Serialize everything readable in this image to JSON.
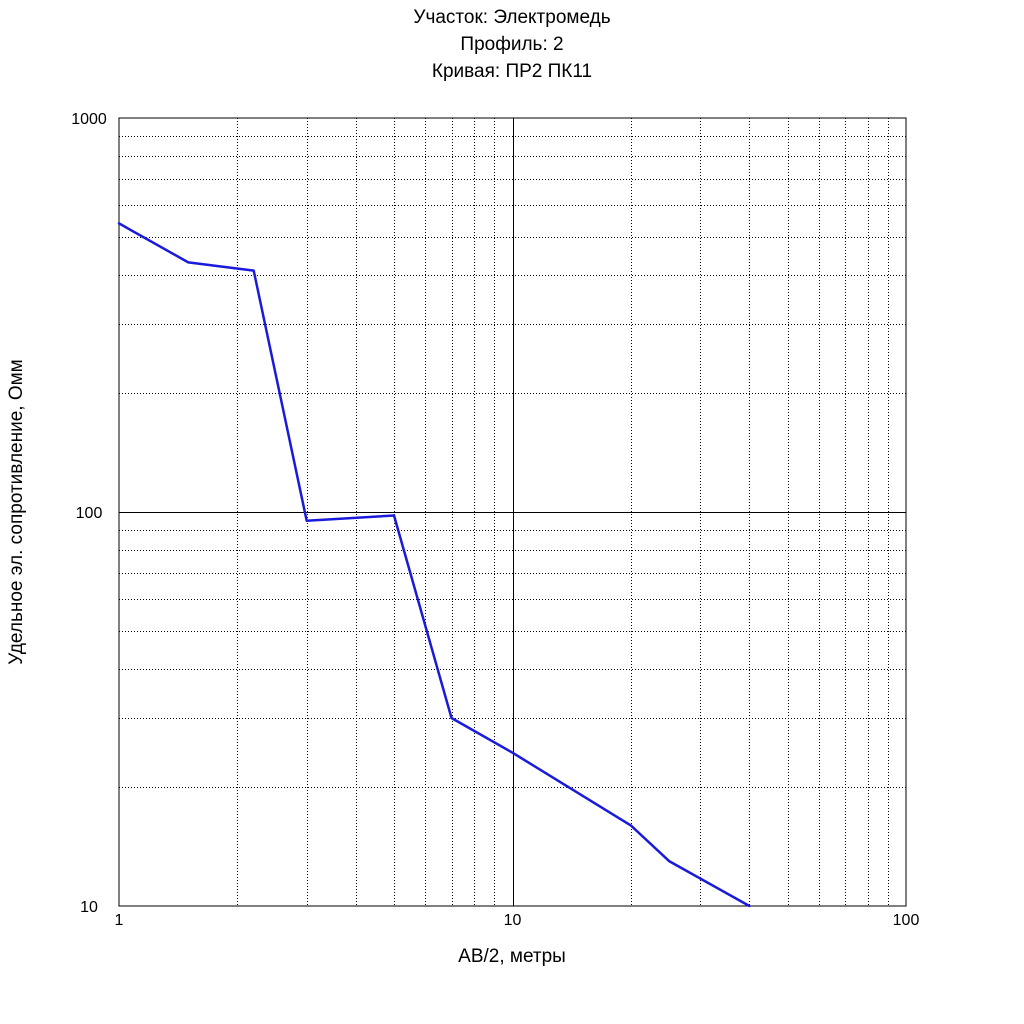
{
  "chart_data": {
    "type": "line",
    "title_lines": [
      "Участок: Электромедь",
      "Профиль: 2",
      "Кривая: ПР2 ПК11"
    ],
    "xlabel": "AB/2, метры",
    "ylabel": "Удельное эл. сопротивление, Омм",
    "x_scale": "log",
    "y_scale": "log",
    "xlim": [
      1,
      100
    ],
    "ylim": [
      10,
      1000
    ],
    "x_ticks": [
      {
        "value": 1,
        "label": "1"
      },
      {
        "value": 10,
        "label": "10"
      },
      {
        "value": 100,
        "label": "100"
      }
    ],
    "y_ticks": [
      {
        "value": 1000,
        "label": "1000"
      },
      {
        "value": 100,
        "label": "100"
      },
      {
        "value": 10,
        "label": "10"
      }
    ],
    "grid": true,
    "series": [
      {
        "color": "#1a1adc",
        "points": [
          {
            "x": 1,
            "y": 540
          },
          {
            "x": 1.5,
            "y": 430
          },
          {
            "x": 2.2,
            "y": 410
          },
          {
            "x": 3,
            "y": 95
          },
          {
            "x": 5,
            "y": 98
          },
          {
            "x": 7,
            "y": 30
          },
          {
            "x": 10,
            "y": 24.5
          },
          {
            "x": 20,
            "y": 16
          },
          {
            "x": 25,
            "y": 13
          },
          {
            "x": 40,
            "y": 10
          }
        ]
      }
    ]
  }
}
